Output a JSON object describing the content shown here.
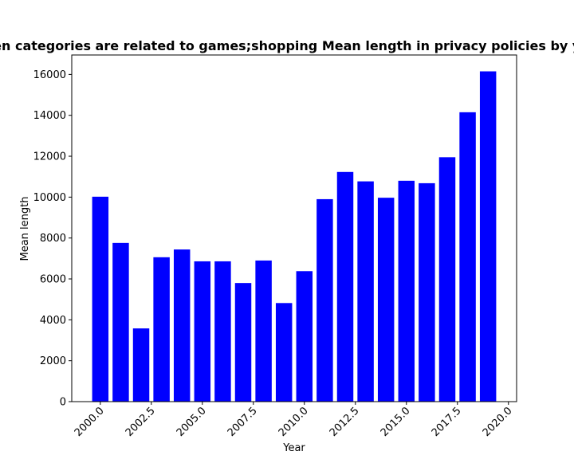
{
  "chart_data": {
    "type": "bar",
    "title": "When categories are related to games;shopping Mean length in privacy policies by year",
    "xlabel": "Year",
    "ylabel": "Mean length",
    "x": [
      2000,
      2001,
      2002,
      2003,
      2004,
      2005,
      2006,
      2007,
      2008,
      2009,
      2010,
      2011,
      2012,
      2013,
      2014,
      2015,
      2016,
      2017,
      2018,
      2019
    ],
    "values": [
      10020,
      7760,
      3580,
      7060,
      7440,
      6860,
      6860,
      5800,
      6900,
      4820,
      6380,
      9900,
      11230,
      10770,
      9970,
      10800,
      10680,
      11950,
      14150,
      16150
    ],
    "xlim": [
      1998.6,
      2020.4
    ],
    "ylim": [
      0,
      16950
    ],
    "xticks": [
      2000.0,
      2002.5,
      2005.0,
      2007.5,
      2010.0,
      2012.5,
      2015.0,
      2017.5,
      2020.0
    ],
    "xtick_labels": [
      "2000.0",
      "2002.5",
      "2005.0",
      "2007.5",
      "2010.0",
      "2012.5",
      "2015.0",
      "2017.5",
      "2020.0"
    ],
    "yticks": [
      0,
      2000,
      4000,
      6000,
      8000,
      10000,
      12000,
      14000,
      16000
    ],
    "ytick_labels": [
      "0",
      "2000",
      "4000",
      "6000",
      "8000",
      "10000",
      "12000",
      "14000",
      "16000"
    ],
    "bar_color": "#0000ff",
    "grid": false,
    "legend": "none"
  }
}
